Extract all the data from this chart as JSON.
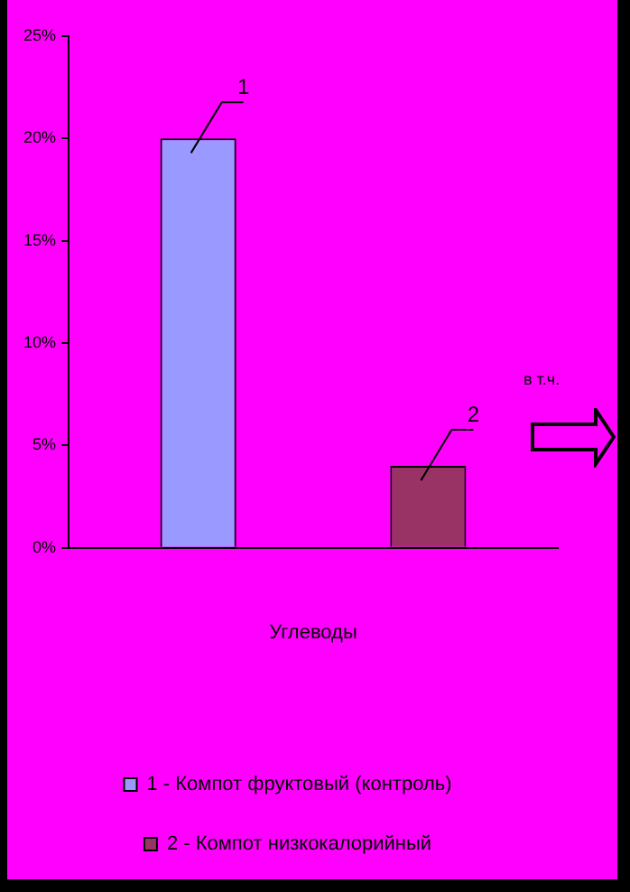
{
  "chart_data": {
    "type": "bar",
    "categories": [
      null
    ],
    "series": [
      {
        "name": "1 - Компот фруктовый (контроль)",
        "color": "#9999ff",
        "values": [
          20
        ]
      },
      {
        "name": "2 - Компот низкокалорийный",
        "color": "#993366",
        "values": [
          4
        ]
      }
    ],
    "xlabel": "Углеводы",
    "ylim": [
      0,
      25
    ],
    "yticks": [
      {
        "value": 0,
        "label": "0%"
      },
      {
        "value": 5,
        "label": "5%"
      },
      {
        "value": 10,
        "label": "10%"
      },
      {
        "value": 15,
        "label": "15%"
      },
      {
        "value": 20,
        "label": "20%"
      },
      {
        "value": 25,
        "label": "25%"
      }
    ],
    "annotations": [
      "1",
      "2",
      "в т.ч."
    ],
    "grid": false,
    "legend": "bottom"
  }
}
